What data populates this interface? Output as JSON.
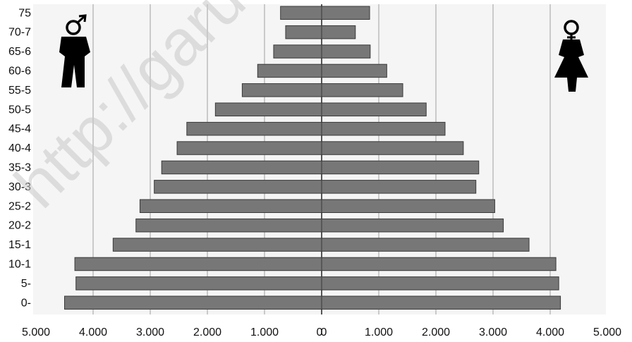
{
  "chart_data": {
    "type": "bar",
    "subtype": "population-pyramid",
    "title": "",
    "xlabel": "",
    "ylabel": "",
    "categories": [
      "0-",
      "5-",
      "10-1",
      "15-1",
      "20-2",
      "25-2",
      "30-3",
      "35-3",
      "40-4",
      "45-4",
      "50-5",
      "55-5",
      "60-6",
      "65-6",
      "70-7",
      "75"
    ],
    "series": [
      {
        "name": "",
        "side": "left",
        "color": "#777777",
        "values": [
          4500,
          4300,
          4320,
          3650,
          3250,
          3180,
          2930,
          2800,
          2530,
          2360,
          1860,
          1390,
          1120,
          840,
          630,
          720
        ]
      },
      {
        "name": "",
        "side": "right",
        "color": "#777777",
        "values": [
          4180,
          4150,
          4100,
          3630,
          3180,
          3030,
          2700,
          2750,
          2480,
          2160,
          1830,
          1420,
          1140,
          850,
          590,
          840
        ]
      }
    ],
    "xlim": [
      -5000,
      5000
    ],
    "xtick_labels": [
      "5.000",
      "4.000",
      "3.000",
      "2.000",
      "1.000",
      "0",
      "0",
      "1.000",
      "2.000",
      "3.000",
      "4.000",
      "5.000"
    ],
    "grid": true,
    "legend": "none"
  },
  "icons": {
    "male": "male-figure-icon",
    "female": "female-figure-icon"
  },
  "watermark": "http://garu",
  "colors": {
    "bar": "#777777",
    "bar_border": "#3a3a3a",
    "plot_bg": "#f5f5f5",
    "grid": "#a0a0a0"
  }
}
